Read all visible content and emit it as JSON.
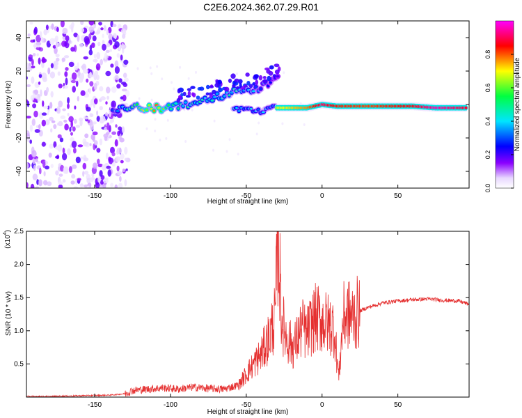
{
  "title": "C2E6.2024.362.07.29.R01",
  "chart_data": [
    {
      "type": "heatmap",
      "xlabel": "Height of straight line (km)",
      "ylabel": "Frequency (Hz)",
      "xlim": [
        -195,
        97
      ],
      "ylim": [
        -50,
        50
      ],
      "xticks": [
        -150,
        -100,
        -50,
        0,
        50
      ],
      "yticks": [
        -40,
        -20,
        0,
        20,
        40
      ],
      "colorbar": {
        "label": "Normalized spectral amplitude",
        "range": [
          0,
          1
        ],
        "ticks": [
          0.0,
          0.2,
          0.4,
          0.6,
          0.8
        ],
        "colormap": [
          "#ffffff",
          "#e8d8ff",
          "#8b00ff",
          "#0000ff",
          "#00e5ff",
          "#00ff40",
          "#ffff00",
          "#ff0000",
          "#ff00ff"
        ]
      },
      "features": {
        "noise_region_x": [
          -195,
          -128
        ],
        "ridge": [
          {
            "x": -138,
            "f": -3,
            "amp": 0.35
          },
          {
            "x": -125,
            "f": -2,
            "amp": 0.55
          },
          {
            "x": -110,
            "f": -2,
            "amp": 0.9
          },
          {
            "x": -100,
            "f": -2,
            "amp": 0.6
          },
          {
            "x": -90,
            "f": 0,
            "amp": 0.5
          },
          {
            "x": -75,
            "f": 3,
            "amp": 0.5
          },
          {
            "x": -60,
            "f": 7,
            "amp": 0.5
          },
          {
            "x": -45,
            "f": 9,
            "amp": 0.4
          },
          {
            "x": -35,
            "f": 12,
            "amp": 0.3
          },
          {
            "x": -28,
            "f": 16,
            "amp": 0.25
          }
        ],
        "lower_branch": [
          {
            "x": -58,
            "f": -3,
            "amp": 0.45
          },
          {
            "x": -40,
            "f": -4,
            "amp": 0.4
          },
          {
            "x": -30,
            "f": -1,
            "amp": 0.4
          }
        ],
        "stable_band": [
          {
            "x": -30,
            "f": -2,
            "amp": 0.4
          },
          {
            "x": -10,
            "f": -2,
            "amp": 0.6
          },
          {
            "x": 0,
            "f": 0,
            "amp": 0.9
          },
          {
            "x": 10,
            "f": -1,
            "amp": 0.75
          },
          {
            "x": 30,
            "f": -1,
            "amp": 0.7
          },
          {
            "x": 60,
            "f": -1,
            "amp": 0.8
          },
          {
            "x": 75,
            "f": -2,
            "amp": 1.0
          },
          {
            "x": 95,
            "f": -2,
            "amp": 0.85
          }
        ]
      }
    },
    {
      "type": "line",
      "xlabel": "Height of straight line (km)",
      "ylabel": "SNR (10 * v/v)",
      "yexponent": "(x10",
      "yexponent_power": "4",
      "xlim": [
        -195,
        97
      ],
      "ylim": [
        0,
        2.5
      ],
      "xticks": [
        -150,
        -100,
        -50,
        0,
        50
      ],
      "yticks": [
        0.5,
        1.0,
        1.5,
        2.0,
        2.5
      ],
      "color": "#e53030",
      "series": [
        {
          "x": [
            -195,
            -180,
            -160,
            -140,
            -130,
            -125,
            -115,
            -105,
            -95,
            -85,
            -75,
            -65,
            -55,
            -50,
            -45,
            -40,
            -35,
            -31,
            -29,
            -27,
            -25,
            -22,
            -19,
            -16,
            -13,
            -10,
            -7,
            -4,
            0,
            4,
            8,
            11,
            14,
            17,
            20,
            25,
            30,
            40,
            50,
            60,
            70,
            80,
            90,
            97
          ],
          "y": [
            0.01,
            0.01,
            0.02,
            0.03,
            0.05,
            0.1,
            0.12,
            0.14,
            0.12,
            0.15,
            0.13,
            0.12,
            0.18,
            0.35,
            0.5,
            0.65,
            0.9,
            1.2,
            2.5,
            1.3,
            1.0,
            0.85,
            0.75,
            0.9,
            1.05,
            0.95,
            1.1,
            1.2,
            1.15,
            1.1,
            1.05,
            0.3,
            1.2,
            1.25,
            1.2,
            1.3,
            1.35,
            1.42,
            1.45,
            1.47,
            1.48,
            1.46,
            1.45,
            1.4
          ]
        }
      ]
    }
  ]
}
